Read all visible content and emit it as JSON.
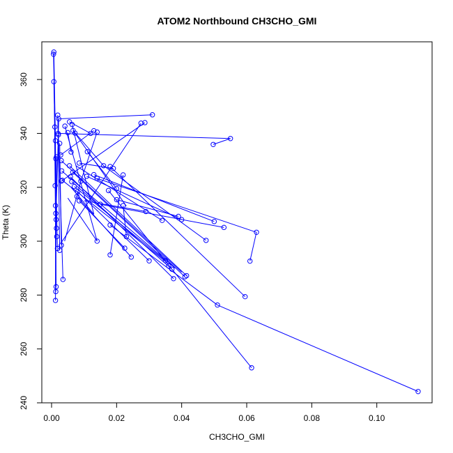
{
  "chart_data": {
    "type": "line",
    "title": "ATOM2 Northbound CH3CHO_GMI",
    "xlabel": "CH3CHO_GMI",
    "ylabel": "Theta (K)",
    "xlim": [
      -0.003,
      0.117
    ],
    "ylim": [
      240,
      374
    ],
    "xticks": [
      0.0,
      0.02,
      0.04,
      0.06,
      0.08,
      0.1
    ],
    "xtick_labels": [
      "0.00",
      "0.02",
      "0.04",
      "0.06",
      "0.08",
      "0.10"
    ],
    "yticks": [
      240,
      260,
      280,
      300,
      320,
      340,
      360
    ],
    "ytick_labels": [
      "240",
      "260",
      "280",
      "300",
      "320",
      "340",
      "360"
    ],
    "grid": false,
    "series": [
      {
        "color": "#0000ff",
        "marker": "open-circle",
        "points": [
          [
            0.0007,
            370.2
          ],
          [
            0.0006,
            369.4
          ],
          [
            0.0007,
            359.2
          ],
          [
            0.001,
            342.4
          ],
          [
            0.0012,
            337.3
          ],
          [
            0.0015,
            331.3
          ],
          [
            0.0013,
            330.6
          ],
          [
            0.0011,
            320.6
          ],
          [
            0.0012,
            313.2
          ],
          [
            0.0013,
            310.3
          ],
          [
            0.0014,
            308.0
          ],
          [
            0.0015,
            304.8
          ],
          [
            0.0016,
            301.7
          ],
          [
            0.0018,
            297.3
          ],
          [
            0.0014,
            283.1
          ],
          [
            0.0013,
            281.3
          ],
          [
            0.0012,
            278.0
          ],
          [
            0.0025,
            296.6
          ],
          [
            0.003,
            298.5
          ],
          [
            0.0035,
            285.8
          ],
          [
            0.0019,
            346.8
          ],
          [
            0.0022,
            345.4
          ],
          [
            0.002,
            340.0
          ],
          [
            0.0021,
            339.5
          ],
          [
            0.0025,
            336.3
          ],
          [
            0.0028,
            332.0
          ],
          [
            0.003,
            329.9
          ],
          [
            0.0031,
            326.1
          ],
          [
            0.0033,
            322.6
          ],
          [
            0.003,
            322.3
          ],
          [
            0.0041,
            342.7
          ],
          [
            0.0055,
            344.3
          ],
          [
            0.0063,
            343.3
          ],
          [
            0.005,
            340.3
          ],
          [
            0.0066,
            341.1
          ],
          [
            0.0072,
            340.1
          ],
          [
            0.006,
            333.1
          ],
          [
            0.0055,
            328.0
          ],
          [
            0.0065,
            325.6
          ],
          [
            0.0058,
            323.9
          ],
          [
            0.0062,
            322.1
          ],
          [
            0.007,
            320.3
          ],
          [
            0.008,
            318.4
          ],
          [
            0.0078,
            316.6
          ],
          [
            0.0085,
            315.0
          ],
          [
            0.009,
            322.3
          ],
          [
            0.0085,
            329.0
          ],
          [
            0.011,
            333.2
          ],
          [
            0.012,
            340.0
          ],
          [
            0.013,
            341.0
          ],
          [
            0.014,
            340.5
          ],
          [
            0.0108,
            324.1
          ],
          [
            0.013,
            324.7
          ],
          [
            0.014,
            323.3
          ],
          [
            0.015,
            313.7
          ],
          [
            0.016,
            328.0
          ],
          [
            0.018,
            327.7
          ],
          [
            0.019,
            327.0
          ],
          [
            0.02,
            319.5
          ],
          [
            0.022,
            324.6
          ],
          [
            0.0175,
            318.8
          ],
          [
            0.018,
            306.0
          ],
          [
            0.02,
            315.4
          ],
          [
            0.022,
            313.2
          ],
          [
            0.023,
            301.7
          ],
          [
            0.014,
            300.0
          ],
          [
            0.018,
            294.9
          ],
          [
            0.0225,
            297.4
          ],
          [
            0.0245,
            294.1
          ],
          [
            0.0275,
            343.8
          ],
          [
            0.0287,
            344.0
          ],
          [
            0.031,
            346.9
          ],
          [
            0.029,
            311.0
          ],
          [
            0.03,
            292.7
          ],
          [
            0.034,
            307.7
          ],
          [
            0.035,
            292.8
          ],
          [
            0.036,
            290.8
          ],
          [
            0.037,
            289.6
          ],
          [
            0.0375,
            286.1
          ],
          [
            0.039,
            309.2
          ],
          [
            0.04,
            308.0
          ],
          [
            0.041,
            286.8
          ],
          [
            0.0415,
            287.2
          ],
          [
            0.0475,
            300.3
          ],
          [
            0.0497,
            335.9
          ],
          [
            0.055,
            338.1
          ],
          [
            0.05,
            307.3
          ],
          [
            0.053,
            305.1
          ],
          [
            0.051,
            276.3
          ],
          [
            0.0595,
            279.4
          ],
          [
            0.061,
            292.6
          ],
          [
            0.063,
            303.3
          ],
          [
            0.0615,
            253.0
          ],
          [
            0.1127,
            244.2
          ]
        ],
        "segments": [
          [
            [
              0.0007,
              370.2
            ],
            [
              0.0012,
              337.3
            ]
          ],
          [
            [
              0.0006,
              369.4
            ],
            [
              0.0018,
              297.3
            ]
          ],
          [
            [
              0.0007,
              359.2
            ],
            [
              0.001,
              342.4
            ]
          ],
          [
            [
              0.0007,
              370.2
            ],
            [
              0.0014,
              283.1
            ]
          ],
          [
            [
              0.0012,
              337.3
            ],
            [
              0.0012,
              278.0
            ]
          ],
          [
            [
              0.0015,
              331.3
            ],
            [
              0.0013,
              281.3
            ]
          ],
          [
            [
              0.0019,
              346.8
            ],
            [
              0.002,
              340.0
            ]
          ],
          [
            [
              0.002,
              340.0
            ],
            [
              0.0025,
              296.6
            ]
          ],
          [
            [
              0.0022,
              345.4
            ],
            [
              0.0014,
              310.3
            ]
          ],
          [
            [
              0.0021,
              339.5
            ],
            [
              0.0035,
              285.8
            ]
          ],
          [
            [
              0.0025,
              336.3
            ],
            [
              0.003,
              298.5
            ]
          ],
          [
            [
              0.0022,
              345.4
            ],
            [
              0.031,
              346.9
            ]
          ],
          [
            [
              0.002,
              340.0
            ],
            [
              0.055,
              338.1
            ]
          ],
          [
            [
              0.055,
              338.1
            ],
            [
              0.0497,
              335.9
            ]
          ],
          [
            [
              0.0028,
              332.0
            ],
            [
              0.013,
              341.0
            ]
          ],
          [
            [
              0.0041,
              342.7
            ],
            [
              0.014,
              300.0
            ]
          ],
          [
            [
              0.0055,
              344.3
            ],
            [
              0.012,
              340.0
            ]
          ],
          [
            [
              0.0063,
              343.3
            ],
            [
              0.013,
              310.0
            ]
          ],
          [
            [
              0.005,
              340.3
            ],
            [
              0.006,
              333.1
            ]
          ],
          [
            [
              0.0066,
              341.1
            ],
            [
              0.016,
              328.0
            ]
          ],
          [
            [
              0.0072,
              340.1
            ],
            [
              0.023,
              313.0
            ]
          ],
          [
            [
              0.003,
              329.9
            ],
            [
              0.04,
              288.5
            ]
          ],
          [
            [
              0.0031,
              326.1
            ],
            [
              0.038,
              290.0
            ]
          ],
          [
            [
              0.0033,
              322.6
            ],
            [
              0.036,
              291.5
            ]
          ],
          [
            [
              0.003,
              322.3
            ],
            [
              0.0287,
              344.0
            ]
          ],
          [
            [
              0.003,
              299.5
            ],
            [
              0.0275,
              343.8
            ]
          ],
          [
            [
              0.004,
              300.0
            ],
            [
              0.009,
              322.3
            ]
          ],
          [
            [
              0.0055,
              328.0
            ],
            [
              0.0415,
              287.2
            ]
          ],
          [
            [
              0.0065,
              325.6
            ],
            [
              0.041,
              286.8
            ]
          ],
          [
            [
              0.0058,
              323.9
            ],
            [
              0.0375,
              286.1
            ]
          ],
          [
            [
              0.0062,
              322.1
            ],
            [
              0.037,
              289.6
            ]
          ],
          [
            [
              0.007,
              320.3
            ],
            [
              0.035,
              292.8
            ]
          ],
          [
            [
              0.008,
              318.4
            ],
            [
              0.03,
              292.7
            ]
          ],
          [
            [
              0.0078,
              316.6
            ],
            [
              0.0245,
              294.1
            ]
          ],
          [
            [
              0.0085,
              315.0
            ],
            [
              0.0225,
              297.4
            ]
          ],
          [
            [
              0.0085,
              329.0
            ],
            [
              0.019,
              327.0
            ]
          ],
          [
            [
              0.011,
              333.2
            ],
            [
              0.02,
              319.5
            ]
          ],
          [
            [
              0.0108,
              324.1
            ],
            [
              0.04,
              308.0
            ]
          ],
          [
            [
              0.013,
              324.7
            ],
            [
              0.05,
              307.3
            ]
          ],
          [
            [
              0.014,
              323.3
            ],
            [
              0.063,
              303.3
            ]
          ],
          [
            [
              0.063,
              303.3
            ],
            [
              0.061,
              292.6
            ]
          ],
          [
            [
              0.015,
              313.7
            ],
            [
              0.053,
              305.1
            ]
          ],
          [
            [
              0.016,
              328.0
            ],
            [
              0.0475,
              300.3
            ]
          ],
          [
            [
              0.018,
              327.7
            ],
            [
              0.0595,
              279.4
            ]
          ],
          [
            [
              0.0175,
              318.8
            ],
            [
              0.0615,
              253.0
            ]
          ],
          [
            [
              0.018,
              306.0
            ],
            [
              0.051,
              276.3
            ]
          ],
          [
            [
              0.051,
              276.3
            ],
            [
              0.1127,
              244.2
            ]
          ],
          [
            [
              0.02,
              315.4
            ],
            [
              0.039,
              309.2
            ]
          ],
          [
            [
              0.022,
              313.2
            ],
            [
              0.023,
              301.7
            ]
          ],
          [
            [
              0.022,
              324.6
            ],
            [
              0.018,
              294.9
            ]
          ],
          [
            [
              0.01,
              315.0
            ],
            [
              0.029,
              311.0
            ]
          ],
          [
            [
              0.014,
              340.5
            ],
            [
              0.009,
              322.3
            ]
          ],
          [
            [
              0.005,
              316.0
            ],
            [
              0.014,
              300.0
            ]
          ],
          [
            [
              0.0075,
              328.0
            ],
            [
              0.034,
              307.7
            ]
          ],
          [
            [
              0.006,
              320.0
            ],
            [
              0.013,
              310.0
            ]
          ]
        ]
      }
    ]
  }
}
